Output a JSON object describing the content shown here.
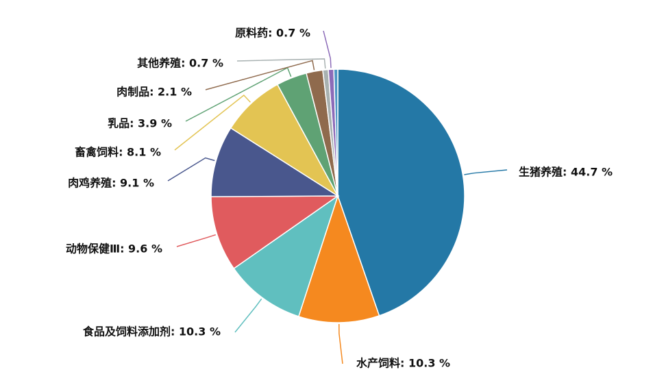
{
  "chart_data": {
    "type": "pie",
    "slices": [
      {
        "label": "生猪养殖",
        "value": 44.7,
        "text": "生猪养殖: 44.7 %",
        "color": "#2478a6"
      },
      {
        "label": "水产饲料",
        "value": 10.3,
        "text": "水产饲料: 10.3 %",
        "color": "#f5891f"
      },
      {
        "label": "食品及饲料添加剂",
        "value": 10.3,
        "text": "食品及饲料添加剂: 10.3 %",
        "color": "#60bfbf"
      },
      {
        "label": "动物保健Ⅲ",
        "value": 9.6,
        "text": "动物保健Ⅲ: 9.6 %",
        "color": "#e05b5e"
      },
      {
        "label": "肉鸡养殖",
        "value": 9.1,
        "text": "肉鸡养殖: 9.1 %",
        "color": "#49578d"
      },
      {
        "label": "畜禽饲料",
        "value": 8.1,
        "text": "畜禽饲料: 8.1 %",
        "color": "#e3c453"
      },
      {
        "label": "乳品",
        "value": 3.9,
        "text": "乳品: 3.9 %",
        "color": "#5fa274"
      },
      {
        "label": "肉制品",
        "value": 2.1,
        "text": "肉制品: 2.1 %",
        "color": "#8f6a4d"
      },
      {
        "label": "其他养殖",
        "value": 0.7,
        "text": "其他养殖: 0.7 %",
        "color": "#a8b1b1"
      },
      {
        "label": "原料药",
        "value": 0.7,
        "text": "原料药: 0.7 %",
        "color": "#8c6bb8"
      },
      {
        "label": "",
        "value": 0.5,
        "text": "",
        "color": "#4d96c4"
      }
    ]
  }
}
